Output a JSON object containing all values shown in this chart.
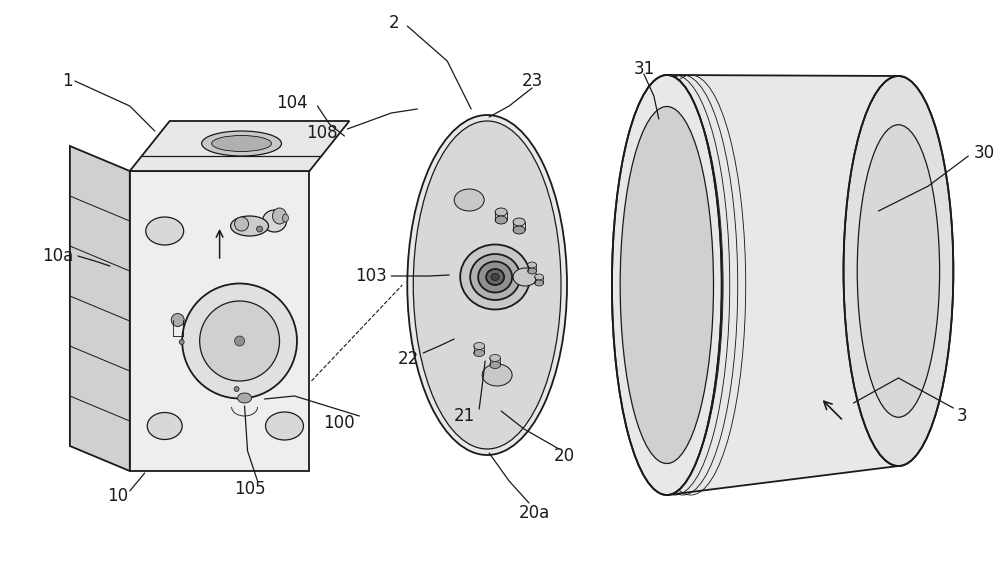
{
  "background_color": "#ffffff",
  "line_color": "#1a1a1a",
  "label_color": "#1a1a1a",
  "label_fontsize": 12,
  "fig_width": 10.0,
  "fig_height": 5.71
}
